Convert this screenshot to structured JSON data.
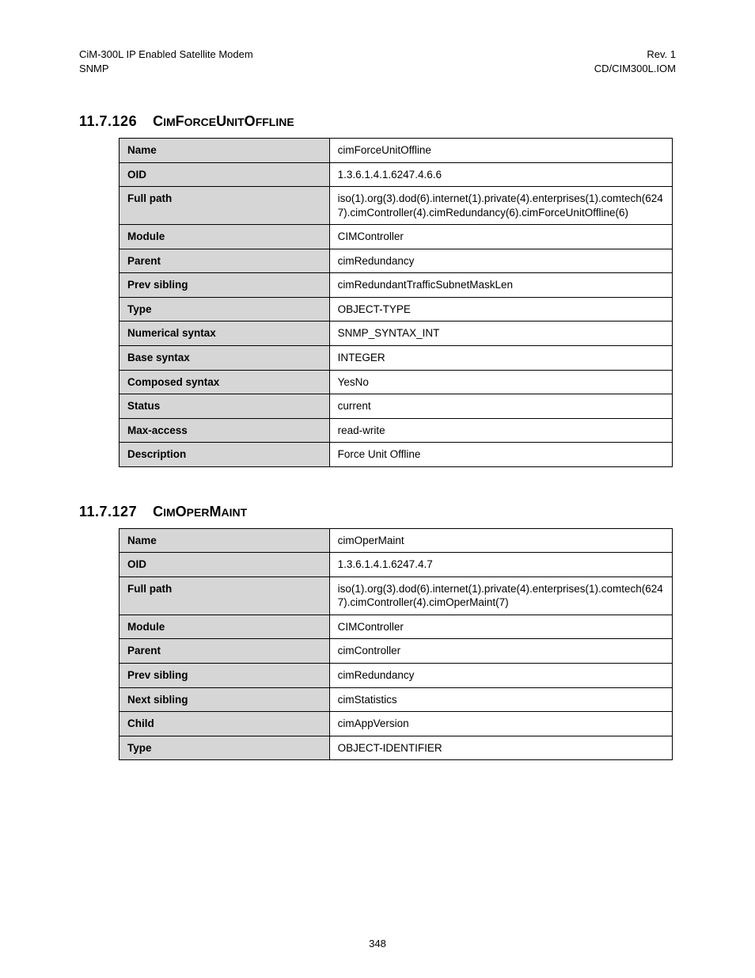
{
  "header": {
    "left1": "CiM-300L IP Enabled Satellite Modem",
    "left2": "SNMP",
    "right1": "Rev. 1",
    "right2": "CD/CIM300L.IOM"
  },
  "section1": {
    "number": "11.7.126",
    "title_parts": [
      "C",
      "IM",
      "F",
      "ORCE",
      "U",
      "NIT",
      "O",
      "FFLINE"
    ],
    "rows": [
      {
        "k": "Name",
        "v": "cimForceUnitOffline"
      },
      {
        "k": "OID",
        "v": "1.3.6.1.4.1.6247.4.6.6"
      },
      {
        "k": "Full path",
        "v": "iso(1).org(3).dod(6).internet(1).private(4).enterprises(1).comtech(6247).cimController(4).cimRedundancy(6).cimForceUnitOffline(6)"
      },
      {
        "k": "Module",
        "v": "CIMController"
      },
      {
        "k": "Parent",
        "v": "cimRedundancy"
      },
      {
        "k": "Prev sibling",
        "v": "cimRedundantTrafficSubnetMaskLen"
      },
      {
        "k": "Type",
        "v": "OBJECT-TYPE"
      },
      {
        "k": "Numerical syntax",
        "v": "SNMP_SYNTAX_INT"
      },
      {
        "k": "Base syntax",
        "v": "INTEGER"
      },
      {
        "k": "Composed syntax",
        "v": "YesNo"
      },
      {
        "k": "Status",
        "v": "current"
      },
      {
        "k": "Max-access",
        "v": "read-write"
      },
      {
        "k": "Description",
        "v": "Force Unit Offline"
      }
    ]
  },
  "section2": {
    "number": "11.7.127",
    "title_parts": [
      "C",
      "IM",
      "O",
      "PER",
      "M",
      "AINT"
    ],
    "rows": [
      {
        "k": "Name",
        "v": "cimOperMaint"
      },
      {
        "k": "OID",
        "v": "1.3.6.1.4.1.6247.4.7"
      },
      {
        "k": "Full path",
        "v": "iso(1).org(3).dod(6).internet(1).private(4).enterprises(1).comtech(6247).cimController(4).cimOperMaint(7)"
      },
      {
        "k": "Module",
        "v": "CIMController"
      },
      {
        "k": "Parent",
        "v": "cimController"
      },
      {
        "k": "Prev sibling",
        "v": "cimRedundancy"
      },
      {
        "k": "Next sibling",
        "v": "cimStatistics"
      },
      {
        "k": "Child",
        "v": "cimAppVersion"
      },
      {
        "k": "Type",
        "v": "OBJECT-IDENTIFIER"
      }
    ]
  },
  "page_number": "348",
  "colors": {
    "header_bg": "#d6d6d6",
    "border": "#000000",
    "text": "#000000",
    "page_bg": "#ffffff"
  },
  "fonts": {
    "body_family": "Arial, Helvetica, sans-serif",
    "body_size_pt": 10,
    "heading_size_pt": 13
  }
}
